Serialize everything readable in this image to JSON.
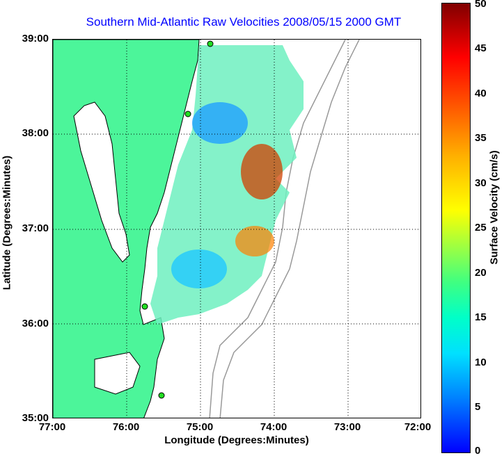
{
  "title": "Southern Mid-Atlantic Raw Velocities 2008/05/15 2000 GMT",
  "axes": {
    "xlabel": "Longitude (Degrees:Minutes)",
    "ylabel": "Latitude (Degrees:Minutes)",
    "xticks": [
      "77:00",
      "76:00",
      "75:00",
      "74:00",
      "73:00",
      "72:00"
    ],
    "yticks": [
      "39:00",
      "38:00",
      "37:00",
      "36:00",
      "35:00"
    ],
    "xlim": [
      -77,
      -72
    ],
    "ylim": [
      35,
      39
    ],
    "grid": "dotted"
  },
  "colorbar": {
    "label": "Surface Velocity (cm/s)",
    "ticks": [
      "50",
      "45",
      "40",
      "35",
      "30",
      "25",
      "20",
      "15",
      "10",
      "5",
      "0"
    ],
    "range": [
      0,
      50
    ],
    "colormap": "jet"
  },
  "colors": {
    "title": "#0000ff",
    "land": "#4cf59a",
    "coast": "#000000",
    "bathymetry": "#999999",
    "stations": "#22dd22"
  }
}
